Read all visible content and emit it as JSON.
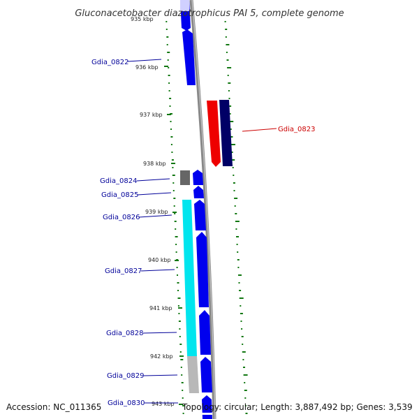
{
  "title": "Gluconacetobacter diazotrophicus PAI 5, complete genome",
  "footer": {
    "accession": "Accession: NC_011365",
    "topology": "Topology: circular; Length: 3,887,492 bp; Genes: 3,539"
  },
  "colors": {
    "forward_gene": "#0000ee",
    "reverse_gene": "#dd0000",
    "dark_reverse": "#000066",
    "cyan_feature": "#00e5ee",
    "grey_feature": "#b8b8b8",
    "dark_grey_feature": "#666666",
    "backbone": "#888888",
    "gc_ticks": "#117711",
    "label_forward": "#000099",
    "label_reverse": "#cc0000"
  },
  "position_labels": [
    {
      "id": "kbp-935",
      "text": "935 kbp"
    },
    {
      "id": "kbp-936",
      "text": "936 kbp"
    },
    {
      "id": "kbp-937",
      "text": "937 kbp"
    },
    {
      "id": "kbp-938",
      "text": "938 kbp"
    },
    {
      "id": "kbp-939",
      "text": "939 kbp"
    },
    {
      "id": "kbp-940",
      "text": "940 kbp"
    },
    {
      "id": "kbp-941",
      "text": "941 kbp"
    },
    {
      "id": "kbp-942",
      "text": "942 kbp"
    },
    {
      "id": "kbp-943",
      "text": "943 kbp"
    }
  ],
  "gene_labels": [
    {
      "id": "gdia-0822",
      "text": "Gdia_0822",
      "strand": "forward"
    },
    {
      "id": "gdia-0823",
      "text": "Gdia_0823",
      "strand": "reverse"
    },
    {
      "id": "gdia-0824",
      "text": "Gdia_0824",
      "strand": "forward"
    },
    {
      "id": "gdia-0825",
      "text": "Gdia_0825",
      "strand": "forward"
    },
    {
      "id": "gdia-0826",
      "text": "Gdia_0826",
      "strand": "forward"
    },
    {
      "id": "gdia-0827",
      "text": "Gdia_0827",
      "strand": "forward"
    },
    {
      "id": "gdia-0828",
      "text": "Gdia_0828",
      "strand": "forward"
    },
    {
      "id": "gdia-0829",
      "text": "Gdia_0829",
      "strand": "forward"
    },
    {
      "id": "gdia-0830",
      "text": "Gdia_0830",
      "strand": "forward"
    }
  ]
}
